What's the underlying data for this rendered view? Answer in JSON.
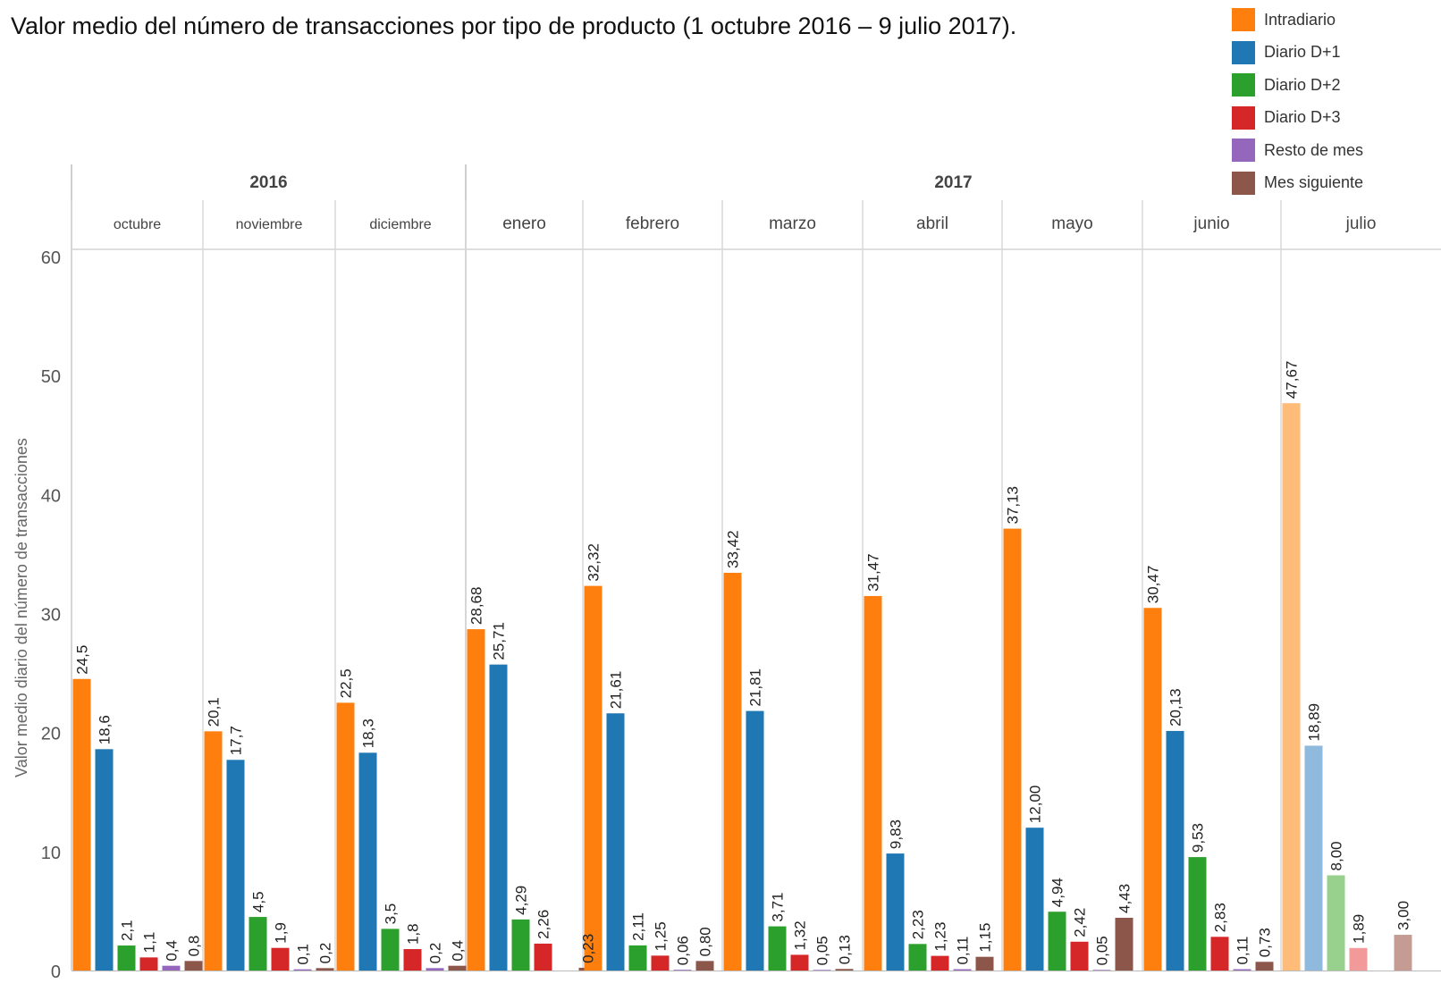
{
  "chart_data": {
    "type": "bar",
    "title": "Valor medio del número de transacciones por tipo de producto (1 octubre 2016 – 9 julio 2017).",
    "ylabel": "Valor medio diario del número de transacciones",
    "ylim": [
      0,
      60
    ],
    "yticks": [
      "0",
      "10",
      "20",
      "30",
      "40",
      "50",
      "60"
    ],
    "grid": false,
    "legend_position": "top-right",
    "years": [
      {
        "label": "2016",
        "months": 3
      },
      {
        "label": "2017",
        "months": 7
      }
    ],
    "categories": [
      "octubre",
      "noviembre",
      "diciembre",
      "enero",
      "febrero",
      "marzo",
      "abril",
      "mayo",
      "junio",
      "julio"
    ],
    "highlighted_category": "julio",
    "series": [
      {
        "name": "Intradiario",
        "color": "#ff7f0e",
        "faded_color": "#ffbb78",
        "values": [
          24.5,
          20.1,
          22.5,
          28.68,
          32.32,
          33.42,
          31.47,
          37.13,
          30.47,
          47.67
        ],
        "labels": [
          "24,5",
          "20,1",
          "22,5",
          "28,68",
          "32,32",
          "33,42",
          "31,47",
          "37,13",
          "30,47",
          "47,67"
        ]
      },
      {
        "name": "Diario D+1",
        "color": "#1f77b4",
        "faded_color": "#8fb9dd",
        "values": [
          18.6,
          17.7,
          18.3,
          25.71,
          21.61,
          21.81,
          9.83,
          12.0,
          20.13,
          18.89
        ],
        "labels": [
          "18,6",
          "17,7",
          "18,3",
          "25,71",
          "21,61",
          "21,81",
          "9,83",
          "12,00",
          "20,13",
          "18,89"
        ]
      },
      {
        "name": "Diario D+2",
        "color": "#2ca02c",
        "faded_color": "#98d18e",
        "values": [
          2.1,
          4.5,
          3.5,
          4.29,
          2.11,
          3.71,
          2.23,
          4.94,
          9.53,
          8.0
        ],
        "labels": [
          "2,1",
          "4,5",
          "3,5",
          "4,29",
          "2,11",
          "3,71",
          "2,23",
          "4,94",
          "9,53",
          "8,00"
        ]
      },
      {
        "name": "Diario D+3",
        "color": "#d62728",
        "faded_color": "#f29a99",
        "values": [
          1.1,
          1.9,
          1.8,
          2.26,
          1.25,
          1.32,
          1.23,
          2.42,
          2.83,
          1.89
        ],
        "labels": [
          "1,1",
          "1,9",
          "1,8",
          "2,26",
          "1,25",
          "1,32",
          "1,23",
          "2,42",
          "2,83",
          "1,89"
        ]
      },
      {
        "name": "Resto de mes",
        "color": "#9467bd",
        "faded_color": "#c5b0d5",
        "values": [
          0.4,
          0.1,
          0.2,
          null,
          0.06,
          0.05,
          0.11,
          0.05,
          0.11,
          null
        ],
        "labels": [
          "0,4",
          "0,1",
          "0,2",
          "",
          "0,06",
          "0,05",
          "0,11",
          "0,05",
          "0,11",
          ""
        ]
      },
      {
        "name": "Mes siguiente",
        "color": "#8c564b",
        "faded_color": "#c49c94",
        "values": [
          0.8,
          0.2,
          0.4,
          0.23,
          0.8,
          0.13,
          1.15,
          4.43,
          0.73,
          3.0
        ],
        "labels": [
          "0,8",
          "0,2",
          "0,4",
          "0,23",
          "0,80",
          "0,13",
          "1,15",
          "4,43",
          "0,73",
          "3,00"
        ]
      }
    ]
  }
}
